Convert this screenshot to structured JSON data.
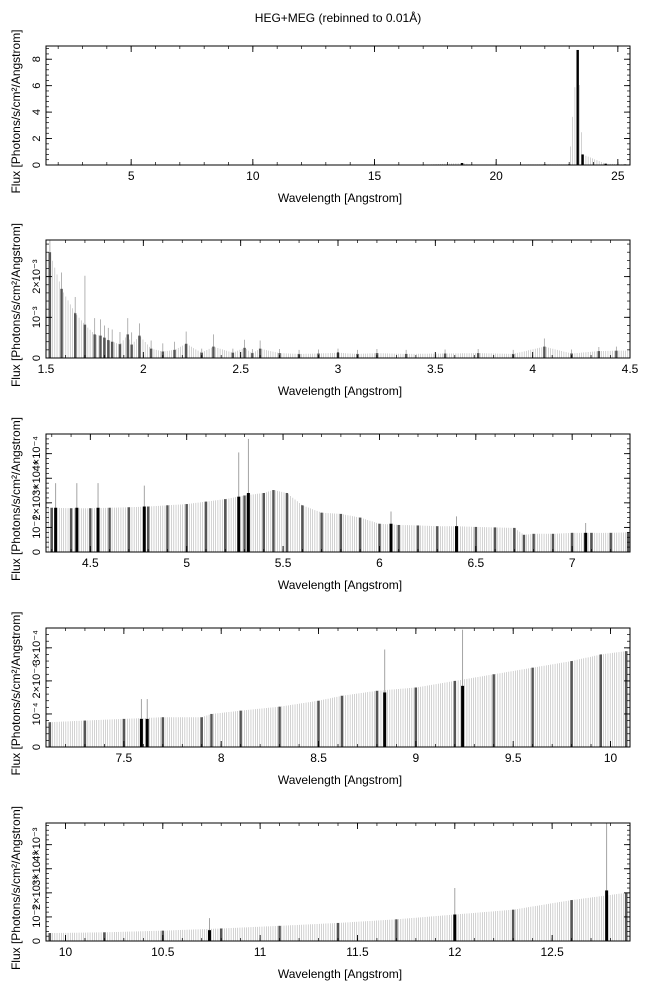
{
  "figure_title": "HEG+MEG (rebinned to 0.01Å)",
  "chart_data": [
    {
      "type": "bar",
      "title": "",
      "xlabel": "Wavelength [Angstrom]",
      "ylabel": "Flux [Photons/s/cm²/Angstrom]",
      "xlim": [
        1.5,
        25.5
      ],
      "ylim": [
        0,
        9
      ],
      "xticks": [
        5,
        10,
        15,
        20,
        25
      ],
      "xtick_labels": [
        "5",
        "10",
        "15",
        "20",
        "25"
      ],
      "yticks": [
        0,
        2,
        4,
        6,
        8
      ],
      "ytick_labels": [
        "0",
        "2",
        "4",
        "6",
        "8"
      ],
      "grid": false,
      "x": [
        1.6,
        3.0,
        5.0,
        7.0,
        9.0,
        11.0,
        13.0,
        15.0,
        17.0,
        18.6,
        19.0,
        21.0,
        22.0,
        23.0,
        23.35,
        23.55,
        24.5,
        25.3
      ],
      "values": [
        0.03,
        0.02,
        0.02,
        0.02,
        0.02,
        0.02,
        0.02,
        0.02,
        0.02,
        0.15,
        0.04,
        0.04,
        0.05,
        0.05,
        8.7,
        0.8,
        0.1,
        0.05
      ],
      "errors": [
        0,
        0,
        0,
        0,
        0,
        0,
        0,
        0,
        0,
        0,
        0,
        0,
        0,
        0,
        0,
        0,
        0,
        0
      ]
    },
    {
      "type": "bar",
      "title": "",
      "xlabel": "Wavelength [Angstrom]",
      "ylabel": "Flux [Photons/s/cm²/Angstrom]",
      "xlim": [
        1.5,
        4.5
      ],
      "ylim": [
        0,
        0.0029
      ],
      "xticks": [
        1.5,
        2,
        2.5,
        3,
        3.5,
        4,
        4.5
      ],
      "xtick_labels": [
        "1.5",
        "2",
        "2.5",
        "3",
        "3.5",
        "4",
        "4.5"
      ],
      "yticks": [
        0,
        0.001,
        0.002
      ],
      "ytick_labels": [
        "0",
        "10⁻³",
        "2×10⁻³"
      ],
      "grid": false,
      "x": [
        1.52,
        1.58,
        1.65,
        1.7,
        1.75,
        1.78,
        1.8,
        1.82,
        1.84,
        1.88,
        1.92,
        1.94,
        1.98,
        2.04,
        2.1,
        2.16,
        2.22,
        2.3,
        2.36,
        2.46,
        2.52,
        2.56,
        2.6,
        2.7,
        2.8,
        2.9,
        3.0,
        3.1,
        3.2,
        3.35,
        3.55,
        3.72,
        3.9,
        4.06,
        4.2,
        4.34,
        4.43
      ],
      "values": [
        0.0026,
        0.0017,
        0.0011,
        0.00082,
        0.00058,
        0.00055,
        0.0005,
        0.00044,
        0.0004,
        0.00034,
        0.00058,
        0.00033,
        0.00055,
        0.00023,
        0.00016,
        0.0002,
        0.00035,
        0.00013,
        0.00028,
        0.00013,
        0.00025,
        0.00012,
        0.00023,
        0.00012,
        0.0001,
        0.00011,
        0.00013,
        0.0001,
        0.00012,
        0.0001,
        0.00011,
        0.00012,
        0.0001,
        0.00028,
        0.00011,
        0.00017,
        0.00018
      ],
      "errors": [
        0.0003,
        0.0004,
        0.0004,
        0.0012,
        0.0004,
        0.0004,
        0.0003,
        0.0003,
        0.0003,
        0.0003,
        0.0004,
        0.0003,
        0.0003,
        0.0002,
        0.0002,
        0.0002,
        0.0003,
        0.0001,
        0.0003,
        0.0001,
        0.0002,
        0.0001,
        0.0002,
        0.0001,
        0.0001,
        0.0001,
        0.0001,
        0.0001,
        0.0001,
        0.0001,
        0.0001,
        0.0001,
        0.0001,
        0.0002,
        0.0001,
        0.0001,
        0.0001
      ]
    },
    {
      "type": "bar",
      "title": "",
      "xlabel": "Wavelength [Angstrom]",
      "ylabel": "Flux [Photons/s/cm²/Angstrom]",
      "xlim": [
        4.27,
        7.3
      ],
      "ylim": [
        0,
        0.00048
      ],
      "xticks": [
        4.5,
        5,
        5.5,
        6,
        6.5,
        7
      ],
      "xtick_labels": [
        "4.5",
        "5",
        "5.5",
        "6",
        "6.5",
        "7"
      ],
      "yticks": [
        0,
        0.0001,
        0.0002,
        0.0003,
        0.0004
      ],
      "ytick_labels": [
        "0",
        "10⁻⁴",
        "2×10⁻⁴",
        "3×10⁻⁴",
        "4×10⁻⁴"
      ],
      "grid": false,
      "x": [
        4.3,
        4.4,
        4.5,
        4.6,
        4.7,
        4.8,
        4.9,
        5.0,
        5.1,
        5.2,
        5.3,
        5.4,
        5.45,
        5.52,
        5.6,
        5.7,
        5.8,
        5.9,
        6.0,
        6.1,
        6.2,
        6.3,
        6.4,
        6.5,
        6.6,
        6.7,
        6.75,
        6.8,
        6.9,
        7.0,
        7.1,
        7.2,
        7.29
      ],
      "values": [
        0.00018,
        0.000178,
        0.000178,
        0.00018,
        0.000182,
        0.000185,
        0.00019,
        0.000195,
        0.000205,
        0.000215,
        0.00023,
        0.00024,
        0.000252,
        0.00024,
        0.00019,
        0.00016,
        0.000155,
        0.00014,
        0.000115,
        0.00011,
        0.000108,
        0.000105,
        0.000105,
        0.000102,
        0.0001,
        9.8e-05,
        7e-05,
        7.4e-05,
        7.4e-05,
        7.8e-05,
        7.8e-05,
        7.8e-05,
        8e-05
      ],
      "errors": [
        0,
        0,
        0,
        0,
        0,
        0,
        0,
        0,
        0,
        0,
        0,
        0,
        0,
        0,
        0,
        0,
        0,
        0,
        0,
        0,
        0,
        0,
        0,
        0,
        0,
        0,
        0,
        0,
        0,
        0,
        0,
        0,
        0
      ],
      "lines_x": [
        4.32,
        4.43,
        4.54,
        4.78,
        5.27,
        5.32,
        6.06,
        6.4,
        7.07
      ],
      "lines_y": [
        0.00018,
        0.00018,
        0.00018,
        0.000185,
        0.000225,
        0.00024,
        0.000115,
        0.000105,
        7.8e-05
      ],
      "lines_err": [
        0.0001,
        0.0001,
        0.0001,
        8.5e-05,
        0.00018,
        0.00022,
        5e-05,
        4e-05,
        4e-05
      ]
    },
    {
      "type": "bar",
      "title": "",
      "xlabel": "Wavelength [Angstrom]",
      "ylabel": "Flux [Photons/s/cm²/Angstrom]",
      "xlim": [
        7.1,
        10.1
      ],
      "ylim": [
        0,
        0.00036
      ],
      "xticks": [
        7.5,
        8,
        8.5,
        9,
        9.5,
        10
      ],
      "xtick_labels": [
        "7.5",
        "8",
        "8.5",
        "9",
        "9.5",
        "10"
      ],
      "yticks": [
        0,
        0.0001,
        0.0002,
        0.0003
      ],
      "ytick_labels": [
        "0",
        "10⁻⁴",
        "2×10⁻⁴",
        "3×10⁻⁴"
      ],
      "grid": false,
      "x": [
        7.12,
        7.3,
        7.5,
        7.7,
        7.9,
        7.95,
        8.1,
        8.3,
        8.5,
        8.62,
        8.8,
        9.0,
        9.2,
        9.4,
        9.6,
        9.8,
        9.95,
        10.08
      ],
      "values": [
        7.5e-05,
        8e-05,
        8.5e-05,
        9e-05,
        9e-05,
        0.0001,
        0.00011,
        0.000122,
        0.00014,
        0.000155,
        0.00017,
        0.00018,
        0.0002,
        0.00022,
        0.00024,
        0.00026,
        0.00028,
        0.00029
      ],
      "errors": [
        0,
        0,
        0,
        0,
        0,
        0,
        0,
        0,
        0,
        0,
        0,
        0,
        0,
        0,
        0,
        0,
        0,
        0
      ],
      "lines_x": [
        7.59,
        7.62,
        8.84,
        9.24
      ],
      "lines_y": [
        8.5e-05,
        8.5e-05,
        0.000165,
        0.000185
      ],
      "lines_err": [
        6e-05,
        6e-05,
        0.00013,
        0.00017
      ]
    },
    {
      "type": "bar",
      "title": "",
      "xlabel": "Wavelength [Angstrom]",
      "ylabel": "Flux [Photons/s/cm²/Angstrom]",
      "xlim": [
        9.9,
        12.9
      ],
      "ylim": [
        0,
        0.0049
      ],
      "xticks": [
        10,
        10.5,
        11,
        11.5,
        12,
        12.5
      ],
      "xtick_labels": [
        "10",
        "10.5",
        "11",
        "11.5",
        "12",
        "12.5"
      ],
      "yticks": [
        0,
        0.001,
        0.002,
        0.003,
        0.004
      ],
      "ytick_labels": [
        "0",
        "10⁻³",
        "2×10⁻³",
        "3×10⁻³",
        "4×10⁻³"
      ],
      "grid": false,
      "x": [
        9.92,
        10.2,
        10.5,
        10.8,
        11.1,
        11.4,
        11.7,
        12.0,
        12.3,
        12.6,
        12.88
      ],
      "values": [
        0.00033,
        0.00036,
        0.00043,
        0.00052,
        0.00063,
        0.00075,
        0.0009,
        0.0011,
        0.0013,
        0.0017,
        0.002
      ],
      "errors": [
        0,
        0,
        0,
        0,
        0,
        0,
        0,
        0,
        0,
        0,
        0
      ],
      "lines_x": [
        10.74,
        12.0,
        12.78
      ],
      "lines_y": [
        0.00045,
        0.0011,
        0.0021
      ],
      "lines_err": [
        0.0005,
        0.0011,
        0.0028
      ]
    }
  ]
}
